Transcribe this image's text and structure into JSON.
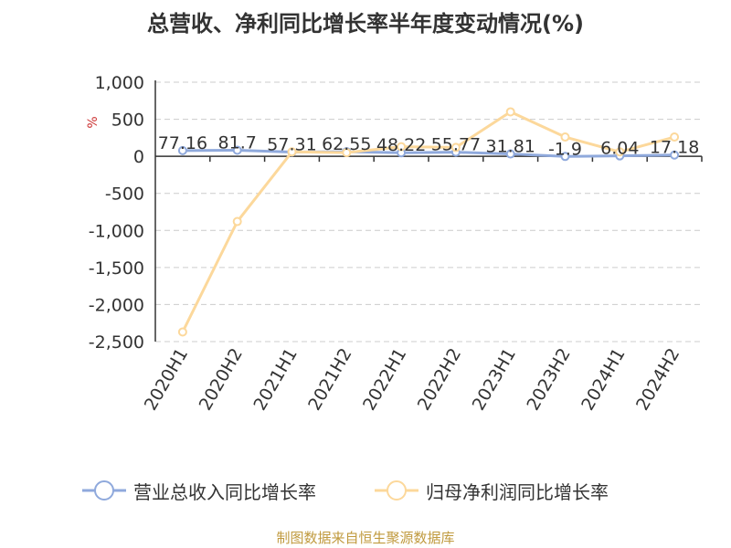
{
  "chart_data": {
    "type": "line",
    "title": "总营收、净利同比增长率半年度变动情况(%)",
    "ylabel": "%",
    "categories": [
      "2020H1",
      "2020H2",
      "2021H1",
      "2021H2",
      "2022H1",
      "2022H2",
      "2023H1",
      "2023H2",
      "2024H1",
      "2024H2"
    ],
    "yticks": [
      "1,000",
      "500",
      "0",
      "-500",
      "-1,000",
      "-1,500",
      "-2,000",
      "-2,500"
    ],
    "ylim": [
      -2500,
      1000
    ],
    "grid": true,
    "legend_position": "bottom",
    "series": [
      {
        "name": "营业总收入同比增长率",
        "color": "#8fa9dc",
        "values": [
          77.16,
          81.7,
          57.31,
          62.55,
          48.22,
          55.77,
          31.81,
          -1.9,
          6.04,
          17.18
        ],
        "labels": [
          "77.16",
          "81.7",
          "57.31",
          "62.55",
          "48.22",
          "55.77",
          "31.81",
          "-1.9",
          "6.04",
          "17.18"
        ]
      },
      {
        "name": "归母净利润同比增长率",
        "color": "#fcd89b",
        "values": [
          -2370,
          -880,
          60,
          50,
          130,
          120,
          600,
          260,
          60,
          260
        ]
      }
    ]
  },
  "source": "制图数据来自恒生聚源数据库"
}
